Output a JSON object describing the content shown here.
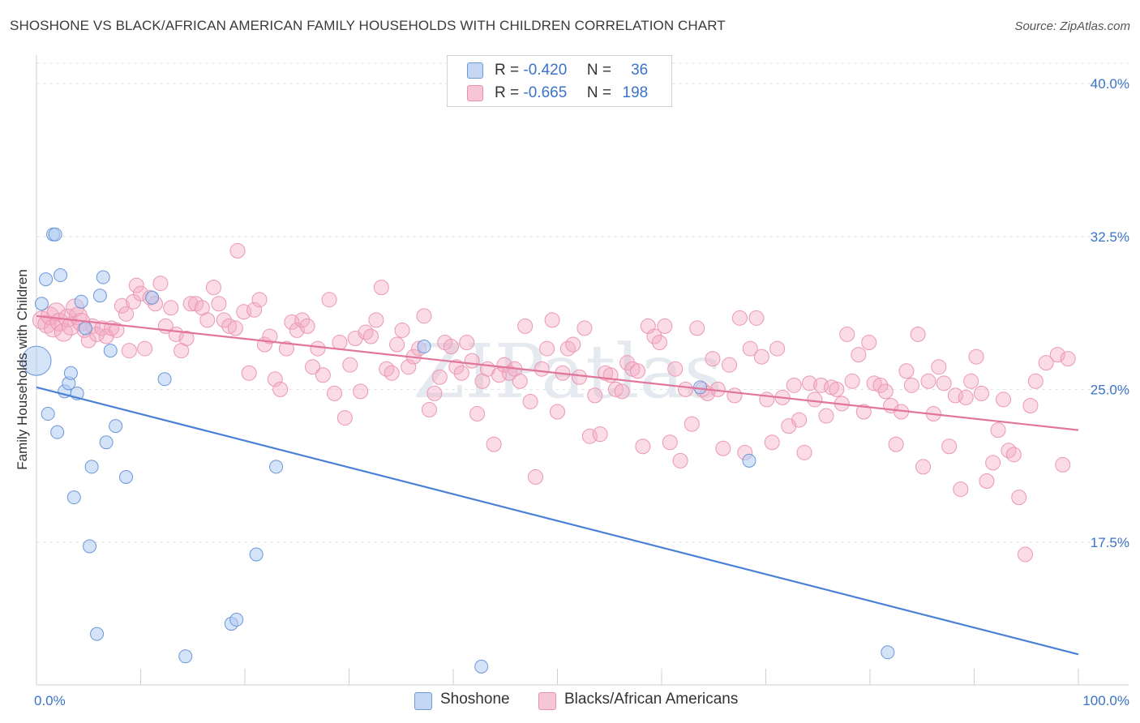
{
  "header": {
    "title": "SHOSHONE VS BLACK/AFRICAN AMERICAN FAMILY HOUSEHOLDS WITH CHILDREN CORRELATION CHART",
    "source": "Source: ZipAtlas.com"
  },
  "legend": {
    "r_label": "R =",
    "n_label": "N =",
    "items": [
      {
        "r": "-0.420",
        "n": "36",
        "color": "#4a80d6"
      },
      {
        "r": "-0.665",
        "n": "198",
        "color": "#e2759a"
      }
    ]
  },
  "bottom_legend": [
    "Shoshone",
    "Blacks/African Americans"
  ],
  "watermark": "ZIPatlas",
  "chart_data": {
    "type": "scatter",
    "title": "SHOSHONE VS BLACK/AFRICAN AMERICAN FAMILY HOUSEHOLDS WITH CHILDREN CORRELATION CHART",
    "xlabel": "",
    "ylabel": "Family Households with Children",
    "xlim": [
      0,
      100
    ],
    "ylim": [
      10.5,
      41.0
    ],
    "x_tick_labels": [
      "0.0%",
      "100.0%"
    ],
    "y_ticks": [
      17.5,
      25.0,
      32.5,
      40.0
    ],
    "y_tick_labels": [
      "17.5%",
      "25.0%",
      "32.5%",
      "40.0%"
    ],
    "grid": true,
    "legend_position": "top-center",
    "colors": {
      "shoshone": "#4a80d6",
      "black": "#e2759a",
      "tick_labels": "#3b73c7"
    },
    "series": [
      {
        "name": "Shoshone",
        "r": -0.42,
        "n": 36,
        "trend": {
          "x": [
            0,
            100
          ],
          "y": [
            25.1,
            12.0
          ]
        },
        "points": [
          [
            0.0,
            26.4
          ],
          [
            0.5,
            29.2
          ],
          [
            0.9,
            30.4
          ],
          [
            1.1,
            23.8
          ],
          [
            1.6,
            32.6
          ],
          [
            1.8,
            32.6
          ],
          [
            2.0,
            22.9
          ],
          [
            2.3,
            30.6
          ],
          [
            2.7,
            24.9
          ],
          [
            3.1,
            25.3
          ],
          [
            3.3,
            25.8
          ],
          [
            3.6,
            19.7
          ],
          [
            3.9,
            24.8
          ],
          [
            4.3,
            29.3
          ],
          [
            4.7,
            28.0
          ],
          [
            5.1,
            17.3
          ],
          [
            5.3,
            21.2
          ],
          [
            5.8,
            13.0
          ],
          [
            6.1,
            29.6
          ],
          [
            6.4,
            30.5
          ],
          [
            6.7,
            22.4
          ],
          [
            7.1,
            26.9
          ],
          [
            7.6,
            23.2
          ],
          [
            8.6,
            20.7
          ],
          [
            11.1,
            29.5
          ],
          [
            12.3,
            25.5
          ],
          [
            14.3,
            11.9
          ],
          [
            18.7,
            13.5
          ],
          [
            19.2,
            13.7
          ],
          [
            21.1,
            16.9
          ],
          [
            23.0,
            21.2
          ],
          [
            37.2,
            27.1
          ],
          [
            42.7,
            11.4
          ],
          [
            63.7,
            25.1
          ],
          [
            68.4,
            21.5
          ],
          [
            81.7,
            12.1
          ]
        ]
      },
      {
        "name": "Blacks/African Americans",
        "r": -0.665,
        "n": 198,
        "trend": {
          "x": [
            0,
            100
          ],
          "y": [
            28.6,
            23.0
          ]
        },
        "points": [
          [
            0.5,
            28.4
          ],
          [
            1.0,
            28.2
          ],
          [
            1.3,
            28.6
          ],
          [
            1.6,
            28.0
          ],
          [
            1.9,
            28.8
          ],
          [
            2.2,
            28.3
          ],
          [
            2.6,
            27.8
          ],
          [
            3.0,
            28.5
          ],
          [
            3.3,
            28.1
          ],
          [
            3.7,
            29.0
          ],
          [
            4.0,
            28.6
          ],
          [
            4.3,
            28.3
          ],
          [
            4.6,
            27.9
          ],
          [
            5.0,
            27.4
          ],
          [
            5.4,
            28.1
          ],
          [
            5.8,
            27.7
          ],
          [
            6.3,
            28.0
          ],
          [
            6.7,
            27.6
          ],
          [
            7.2,
            28.0
          ],
          [
            7.7,
            27.9
          ],
          [
            8.2,
            29.1
          ],
          [
            8.6,
            28.7
          ],
          [
            8.9,
            26.9
          ],
          [
            9.3,
            29.3
          ],
          [
            9.6,
            30.1
          ],
          [
            10.0,
            29.7
          ],
          [
            10.4,
            27.0
          ],
          [
            10.9,
            29.5
          ],
          [
            11.4,
            29.2
          ],
          [
            11.9,
            30.2
          ],
          [
            12.4,
            28.1
          ],
          [
            12.9,
            29.0
          ],
          [
            13.4,
            27.7
          ],
          [
            13.9,
            26.9
          ],
          [
            14.4,
            27.5
          ],
          [
            14.8,
            29.2
          ],
          [
            15.3,
            29.2
          ],
          [
            15.9,
            29.0
          ],
          [
            16.4,
            28.4
          ],
          [
            17.0,
            30.0
          ],
          [
            17.5,
            29.2
          ],
          [
            18.0,
            28.4
          ],
          [
            18.5,
            28.1
          ],
          [
            19.1,
            28.0
          ],
          [
            19.3,
            31.8
          ],
          [
            19.9,
            28.8
          ],
          [
            20.4,
            25.8
          ],
          [
            20.9,
            28.9
          ],
          [
            21.4,
            29.4
          ],
          [
            21.9,
            27.2
          ],
          [
            22.4,
            27.6
          ],
          [
            22.9,
            25.5
          ],
          [
            23.4,
            25.0
          ],
          [
            24.0,
            27.0
          ],
          [
            24.5,
            28.3
          ],
          [
            25.0,
            27.9
          ],
          [
            25.5,
            28.4
          ],
          [
            26.0,
            28.1
          ],
          [
            26.5,
            26.1
          ],
          [
            27.0,
            27.0
          ],
          [
            27.5,
            25.7
          ],
          [
            28.1,
            29.4
          ],
          [
            28.6,
            24.8
          ],
          [
            29.1,
            27.3
          ],
          [
            29.6,
            23.6
          ],
          [
            30.1,
            26.2
          ],
          [
            30.6,
            27.5
          ],
          [
            31.1,
            24.9
          ],
          [
            31.6,
            27.8
          ],
          [
            32.1,
            27.6
          ],
          [
            32.6,
            28.4
          ],
          [
            33.1,
            30.0
          ],
          [
            33.6,
            26.0
          ],
          [
            34.1,
            25.8
          ],
          [
            34.6,
            27.2
          ],
          [
            35.1,
            27.9
          ],
          [
            35.7,
            26.1
          ],
          [
            36.2,
            26.6
          ],
          [
            36.7,
            27.0
          ],
          [
            37.2,
            28.6
          ],
          [
            37.7,
            24.0
          ],
          [
            38.2,
            24.8
          ],
          [
            38.7,
            25.6
          ],
          [
            39.2,
            27.3
          ],
          [
            39.8,
            27.1
          ],
          [
            40.3,
            26.1
          ],
          [
            40.8,
            25.8
          ],
          [
            41.3,
            27.3
          ],
          [
            41.8,
            26.4
          ],
          [
            42.3,
            23.8
          ],
          [
            42.8,
            25.4
          ],
          [
            43.3,
            26.0
          ],
          [
            43.9,
            22.3
          ],
          [
            44.4,
            25.7
          ],
          [
            44.9,
            26.2
          ],
          [
            45.4,
            25.8
          ],
          [
            45.9,
            26.0
          ],
          [
            46.4,
            25.4
          ],
          [
            46.9,
            28.1
          ],
          [
            47.4,
            24.4
          ],
          [
            47.9,
            20.7
          ],
          [
            48.5,
            26.0
          ],
          [
            49.0,
            27.0
          ],
          [
            49.5,
            28.4
          ],
          [
            50.0,
            23.9
          ],
          [
            50.5,
            25.8
          ],
          [
            51.0,
            27.0
          ],
          [
            51.5,
            27.2
          ],
          [
            52.1,
            25.6
          ],
          [
            52.6,
            28.0
          ],
          [
            53.1,
            22.7
          ],
          [
            53.6,
            24.7
          ],
          [
            54.1,
            22.8
          ],
          [
            54.6,
            25.8
          ],
          [
            55.1,
            25.7
          ],
          [
            55.6,
            25.0
          ],
          [
            56.2,
            24.9
          ],
          [
            56.7,
            26.3
          ],
          [
            57.2,
            26.0
          ],
          [
            57.7,
            25.9
          ],
          [
            58.2,
            22.2
          ],
          [
            58.7,
            28.1
          ],
          [
            59.3,
            27.6
          ],
          [
            59.8,
            27.3
          ],
          [
            60.3,
            28.1
          ],
          [
            60.8,
            22.4
          ],
          [
            61.3,
            26.0
          ],
          [
            61.8,
            21.5
          ],
          [
            62.3,
            25.0
          ],
          [
            62.9,
            23.3
          ],
          [
            63.4,
            28.0
          ],
          [
            63.9,
            25.0
          ],
          [
            64.4,
            24.8
          ],
          [
            64.9,
            26.5
          ],
          [
            65.4,
            25.0
          ],
          [
            65.9,
            22.1
          ],
          [
            66.5,
            26.2
          ],
          [
            67.0,
            24.7
          ],
          [
            67.5,
            28.5
          ],
          [
            68.0,
            21.9
          ],
          [
            68.5,
            27.0
          ],
          [
            69.1,
            28.5
          ],
          [
            69.6,
            26.6
          ],
          [
            70.1,
            24.5
          ],
          [
            70.6,
            22.4
          ],
          [
            71.1,
            27.0
          ],
          [
            71.6,
            24.6
          ],
          [
            72.2,
            23.2
          ],
          [
            72.7,
            25.2
          ],
          [
            73.2,
            23.5
          ],
          [
            73.7,
            21.9
          ],
          [
            74.2,
            25.3
          ],
          [
            74.7,
            24.5
          ],
          [
            75.3,
            25.2
          ],
          [
            75.8,
            23.7
          ],
          [
            76.3,
            25.1
          ],
          [
            76.8,
            25.0
          ],
          [
            77.3,
            24.3
          ],
          [
            77.8,
            27.7
          ],
          [
            78.3,
            25.4
          ],
          [
            78.9,
            26.7
          ],
          [
            79.4,
            23.9
          ],
          [
            79.9,
            27.3
          ],
          [
            80.4,
            25.3
          ],
          [
            81.0,
            25.2
          ],
          [
            81.5,
            24.9
          ],
          [
            82.0,
            24.2
          ],
          [
            82.5,
            22.3
          ],
          [
            83.0,
            23.9
          ],
          [
            83.5,
            25.9
          ],
          [
            84.0,
            25.2
          ],
          [
            84.6,
            27.7
          ],
          [
            85.1,
            21.2
          ],
          [
            85.6,
            25.4
          ],
          [
            86.1,
            23.8
          ],
          [
            86.6,
            26.1
          ],
          [
            87.1,
            25.3
          ],
          [
            87.6,
            22.2
          ],
          [
            88.2,
            24.7
          ],
          [
            88.7,
            20.1
          ],
          [
            89.2,
            24.6
          ],
          [
            89.7,
            25.4
          ],
          [
            90.2,
            26.6
          ],
          [
            90.7,
            24.8
          ],
          [
            91.2,
            20.5
          ],
          [
            91.8,
            21.4
          ],
          [
            92.3,
            23.0
          ],
          [
            92.8,
            24.5
          ],
          [
            93.3,
            22.0
          ],
          [
            93.8,
            21.8
          ],
          [
            94.3,
            19.7
          ],
          [
            94.9,
            16.9
          ],
          [
            95.4,
            24.2
          ],
          [
            95.9,
            25.4
          ],
          [
            96.9,
            26.3
          ],
          [
            98.0,
            26.7
          ],
          [
            98.5,
            21.3
          ],
          [
            99.0,
            26.5
          ]
        ]
      }
    ]
  }
}
